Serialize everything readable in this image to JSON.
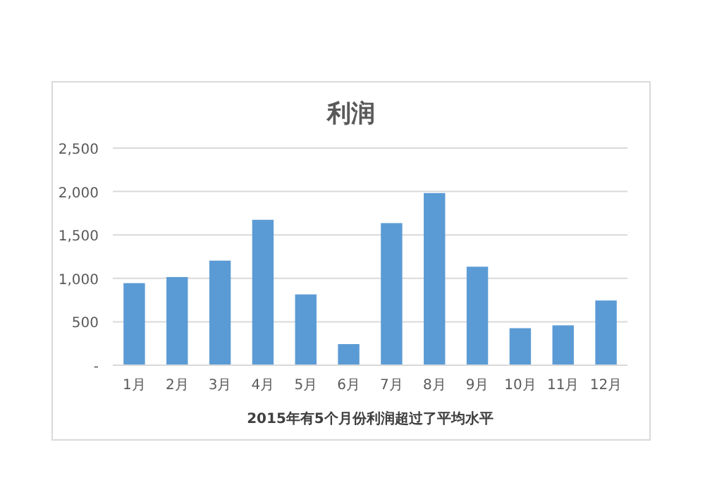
{
  "chart_data": {
    "type": "bar",
    "title": "利润",
    "categories": [
      "1月",
      "2月",
      "3月",
      "4月",
      "5月",
      "6月",
      "7月",
      "8月",
      "9月",
      "10月",
      "11月",
      "12月"
    ],
    "values": [
      945,
      1015,
      1204,
      1674,
      815,
      243,
      1636,
      1982,
      1134,
      426,
      459,
      745
    ],
    "color": "#5b9bd5",
    "ylim": [
      0,
      2500
    ],
    "yticks": [
      {
        "value": 0,
        "label": "-"
      },
      {
        "value": 500,
        "label": "500"
      },
      {
        "value": 1000,
        "label": "1,000"
      },
      {
        "value": 1500,
        "label": "1,500"
      },
      {
        "value": 2000,
        "label": "2,000"
      },
      {
        "value": 2500,
        "label": "2,500"
      }
    ],
    "grid": "y",
    "annotations": [
      "2015年有5个月份利润超过了平均水平"
    ]
  }
}
